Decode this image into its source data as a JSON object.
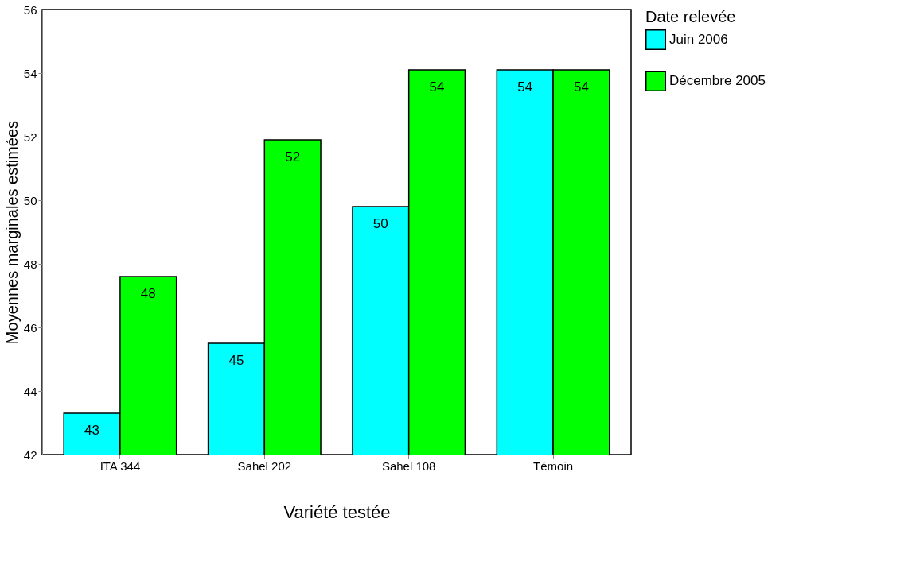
{
  "chart_data": {
    "type": "bar",
    "xlabel": "Variété testée",
    "ylabel": "Moyennes marginales estimées",
    "legend_title": "Date relevée",
    "categories": [
      "ITA 344",
      "Sahel 202",
      "Sahel 108",
      "Témoin"
    ],
    "series": [
      {
        "name": "Juin 2006",
        "color": "#00ffff",
        "values": [
          43.3,
          45.5,
          49.8,
          54.1
        ],
        "value_labels": [
          "43",
          "45",
          "50",
          "54"
        ]
      },
      {
        "name": "Décembre  2005",
        "color": "#00ff00",
        "values": [
          47.6,
          51.9,
          54.1,
          54.1
        ],
        "value_labels": [
          "48",
          "52",
          "54",
          "54"
        ]
      }
    ],
    "ylim": [
      42,
      56
    ],
    "yticks": [
      42,
      44,
      46,
      48,
      50,
      52,
      54,
      56
    ],
    "grid": false,
    "legend": "right"
  }
}
